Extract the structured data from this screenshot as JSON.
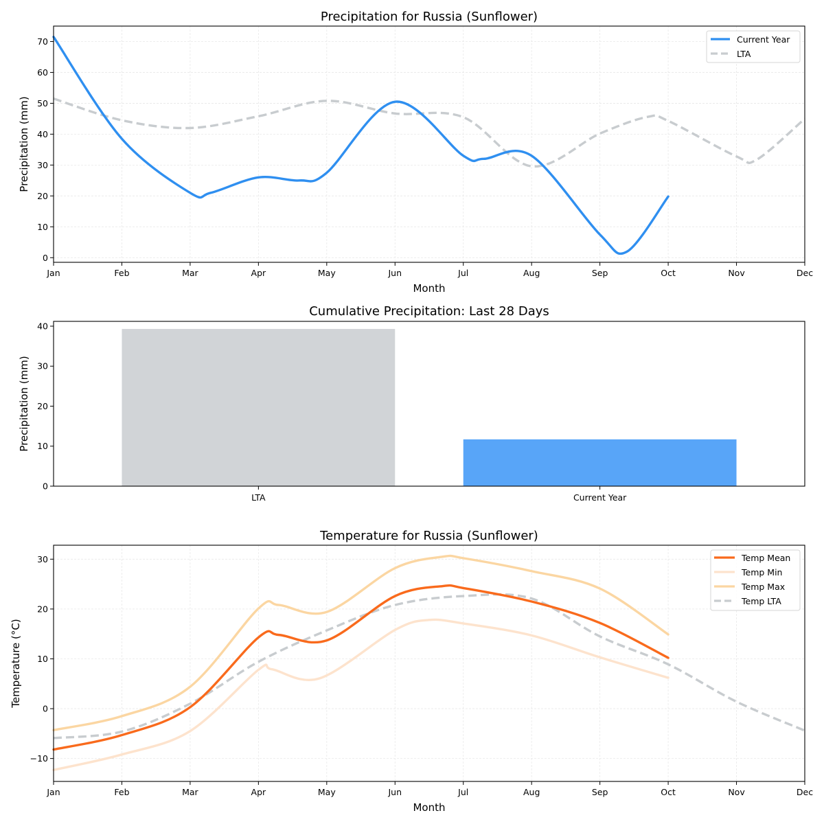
{
  "chart_data": [
    {
      "type": "line",
      "title": "Precipitation for Russia (Sunflower)",
      "xlabel": "Month",
      "ylabel": "Precipitation (mm)",
      "categories": [
        "Jan",
        "Feb",
        "Mar",
        "Apr",
        "May",
        "Jun",
        "Jul",
        "Aug",
        "Sep",
        "Oct",
        "Nov",
        "Dec"
      ],
      "ylim": [
        -1.5,
        75
      ],
      "yticks": [
        0,
        10,
        20,
        30,
        40,
        50,
        60,
        70
      ],
      "grid": true,
      "legend_position": "top-right",
      "series": [
        {
          "name": "Current Year",
          "color": "#2f8ff0",
          "style": "solid",
          "x": [
            0,
            1,
            2,
            2.3,
            3,
            3.6,
            4,
            5,
            6,
            6.3,
            7,
            8,
            8.4,
            9
          ],
          "values": [
            71.5,
            38.5,
            21,
            21,
            26,
            25,
            27.5,
            50.5,
            33,
            32,
            33,
            7.5,
            2,
            19.8
          ]
        },
        {
          "name": "LTA",
          "color": "#c8cccf",
          "style": "dashed",
          "x": [
            0,
            1,
            2,
            3,
            4,
            5,
            6,
            7,
            8,
            8.7,
            9,
            10,
            10.3,
            11
          ],
          "values": [
            51.5,
            44.5,
            42,
            45.8,
            50.8,
            46.7,
            45.5,
            29.6,
            40.2,
            45.6,
            44.3,
            32.8,
            31.8,
            45.0
          ]
        }
      ]
    },
    {
      "type": "bar",
      "title": "Cumulative Precipitation: Last 28 Days",
      "xlabel": "",
      "ylabel": "Precipitation (mm)",
      "categories": [
        "LTA",
        "Current Year"
      ],
      "values": [
        39.3,
        11.7
      ],
      "colors": [
        "#d1d4d7",
        "#58a5f8"
      ],
      "ylim": [
        0,
        41.2
      ],
      "yticks": [
        0,
        10,
        20,
        30,
        40
      ]
    },
    {
      "type": "line",
      "title": "Temperature for Russia (Sunflower)",
      "xlabel": "Month",
      "ylabel": "Temperature (°C)",
      "categories": [
        "Jan",
        "Feb",
        "Mar",
        "Apr",
        "May",
        "Jun",
        "Jul",
        "Aug",
        "Sep",
        "Oct",
        "Nov",
        "Dec"
      ],
      "ylim": [
        -14.6,
        32.8
      ],
      "yticks": [
        -10,
        0,
        10,
        20,
        30
      ],
      "grid": true,
      "legend_position": "top-right",
      "series": [
        {
          "name": "Temp Mean",
          "color": "#f96a1c",
          "style": "solid",
          "alpha": 1.0,
          "x": [
            0,
            1,
            2,
            3,
            3.3,
            4,
            5,
            5.7,
            6,
            7,
            8,
            9
          ],
          "values": [
            -8.2,
            -5.3,
            0.3,
            14.3,
            14.8,
            13.7,
            22.6,
            24.6,
            24.2,
            21.5,
            17.2,
            10.2
          ]
        },
        {
          "name": "Temp Min",
          "color": "#fde3cd",
          "style": "solid",
          "alpha": 1.0,
          "x": [
            0,
            1,
            2,
            3,
            3.2,
            3.9,
            5,
            5.5,
            6,
            7,
            8,
            9
          ],
          "values": [
            -12.3,
            -9.2,
            -4.5,
            7.8,
            7.9,
            6.1,
            15.8,
            17.8,
            17.1,
            14.7,
            10.3,
            6.2
          ]
        },
        {
          "name": "Temp Max",
          "color": "#fbd6a2",
          "style": "solid",
          "alpha": 1.0,
          "x": [
            0,
            1,
            2,
            3,
            3.3,
            4,
            5,
            5.7,
            6,
            7,
            8,
            9
          ],
          "values": [
            -4.3,
            -1.5,
            4.4,
            20.1,
            20.8,
            19.4,
            28.2,
            30.5,
            30.2,
            27.6,
            24.1,
            14.9
          ]
        },
        {
          "name": "Temp LTA",
          "color": "#c8cccf",
          "style": "dashed",
          "alpha": 1.0,
          "x": [
            0,
            1,
            2,
            3,
            4,
            5,
            6,
            7,
            8,
            9,
            10,
            11
          ],
          "values": [
            -5.9,
            -4.6,
            1.0,
            9.4,
            15.7,
            20.8,
            22.6,
            22.1,
            14.5,
            8.9,
            1.4,
            -4.4
          ]
        }
      ]
    }
  ]
}
